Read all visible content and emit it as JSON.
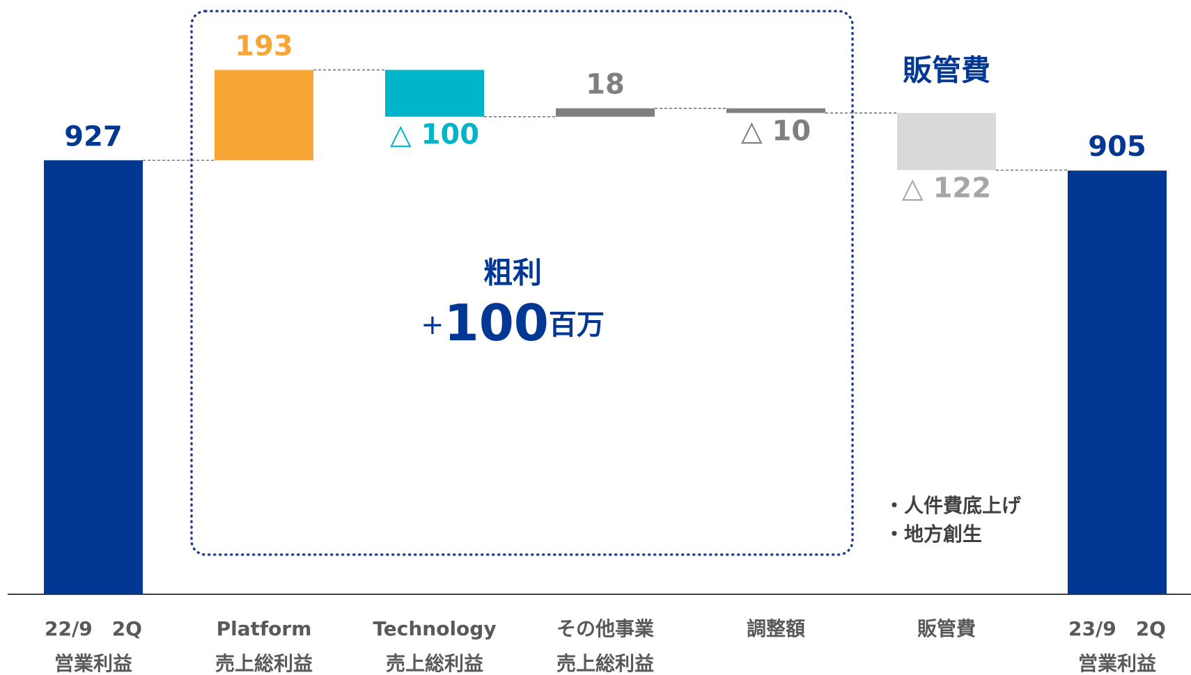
{
  "chart_data": {
    "type": "waterfall",
    "categories": [
      [
        "22/9　2Q",
        "営業利益"
      ],
      [
        "Platform",
        "売上総利益"
      ],
      [
        "Technology",
        "売上総利益"
      ],
      [
        "その他事業",
        "売上総利益"
      ],
      [
        "調整額"
      ],
      [
        "販管費"
      ],
      [
        "23/9　2Q",
        "営業利益"
      ]
    ],
    "values": [
      927,
      193,
      -100,
      18,
      -10,
      -122,
      905
    ],
    "value_labels": [
      "927",
      "193",
      "△ 100",
      "18",
      "△ 10",
      "△ 122",
      "905"
    ],
    "totals": [
      true,
      false,
      false,
      false,
      false,
      false,
      true
    ],
    "colors": [
      "#023894",
      "#f7a535",
      "#00b4c9",
      "#7f7f7f",
      "#7f7f7f",
      "#d9d9d9",
      "#023894"
    ],
    "label_colors": [
      "#023894",
      "#f7a535",
      "#00b4c9",
      "#7f7f7f",
      "#7f7f7f",
      "#a6a6a6",
      "#023894"
    ],
    "ylim": [
      0,
      1250
    ],
    "annotations": {
      "sga_title": "販管費",
      "gross_profit": {
        "label": "粗利",
        "sign": "+",
        "value": 100,
        "unit": "百万"
      },
      "notes": [
        "・人件費底上げ",
        "・地方創生"
      ]
    }
  }
}
